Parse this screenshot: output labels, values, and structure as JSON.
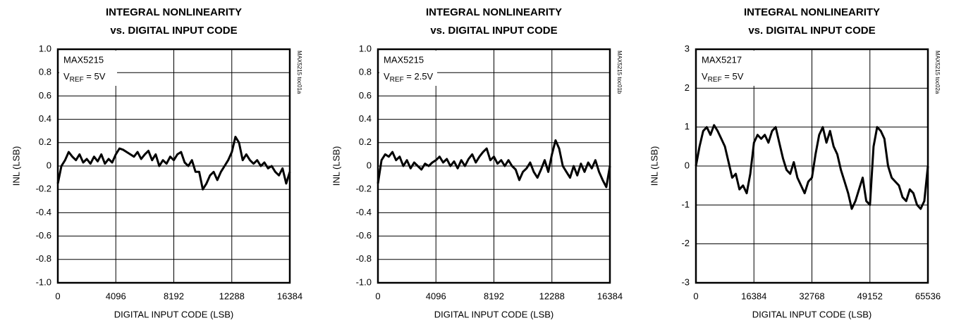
{
  "chart_data": [
    {
      "type": "line",
      "title": [
        "INTEGRAL NONLINEARITY",
        "vs. DIGITAL INPUT CODE"
      ],
      "annotation": {
        "device": "MAX5215",
        "symbol": "V",
        "subscript": "REF",
        "value": " = 5V"
      },
      "side_text": "MAX5215 toc01a",
      "xlabel": "DIGITAL INPUT CODE (LSB)",
      "ylabel": "INL (LSB)",
      "xlim": [
        0,
        16384
      ],
      "xticks": [
        0,
        4096,
        8192,
        12288,
        16384
      ],
      "ylim": [
        -1,
        1
      ],
      "yticks": [
        {
          "value": -1,
          "label": "-1.0"
        },
        -0.8,
        -0.6,
        -0.4,
        -0.2,
        0,
        0.2,
        0.4,
        0.6,
        0.8,
        {
          "value": 1,
          "label": "1.0"
        }
      ],
      "grid": true,
      "color": "#000000",
      "x": [
        0,
        256,
        512,
        768,
        1024,
        1280,
        1536,
        1792,
        2048,
        2304,
        2560,
        2816,
        3072,
        3328,
        3584,
        3840,
        4096,
        4352,
        4608,
        4864,
        5120,
        5376,
        5632,
        5888,
        6144,
        6400,
        6656,
        6912,
        7168,
        7424,
        7680,
        7936,
        8192,
        8448,
        8704,
        8960,
        9216,
        9472,
        9728,
        9984,
        10240,
        10496,
        10752,
        11008,
        11264,
        11520,
        11776,
        12032,
        12288,
        12544,
        12800,
        13056,
        13312,
        13568,
        13824,
        14080,
        14336,
        14592,
        14848,
        15104,
        15360,
        15616,
        15872,
        16128,
        16384
      ],
      "values": [
        -0.15,
        0.0,
        0.05,
        0.12,
        0.08,
        0.05,
        0.1,
        0.03,
        0.06,
        0.02,
        0.08,
        0.04,
        0.1,
        0.02,
        0.06,
        0.03,
        0.1,
        0.15,
        0.14,
        0.12,
        0.1,
        0.08,
        0.12,
        0.06,
        0.1,
        0.13,
        0.05,
        0.1,
        0.0,
        0.05,
        0.02,
        0.08,
        0.05,
        0.1,
        0.12,
        0.03,
        0.0,
        0.05,
        -0.05,
        -0.05,
        -0.2,
        -0.15,
        -0.08,
        -0.05,
        -0.12,
        -0.05,
        0.0,
        0.05,
        0.12,
        0.25,
        0.2,
        0.05,
        0.1,
        0.05,
        0.02,
        0.05,
        0.0,
        0.03,
        -0.02,
        0.0,
        -0.05,
        -0.08,
        -0.02,
        -0.15,
        -0.05
      ]
    },
    {
      "type": "line",
      "title": [
        "INTEGRAL NONLINEARITY",
        "vs. DIGITAL INPUT CODE"
      ],
      "annotation": {
        "device": "MAX5215",
        "symbol": "V",
        "subscript": "REF",
        "value": " = 2.5V"
      },
      "side_text": "MAX5215 toc01b",
      "xlabel": "DIGITAL INPUT CODE (LSB)",
      "ylabel": "INL (LSB)",
      "xlim": [
        0,
        16384
      ],
      "xticks": [
        0,
        4096,
        8192,
        12288,
        16384
      ],
      "ylim": [
        -1,
        1
      ],
      "yticks": [
        {
          "value": -1,
          "label": "-1.0"
        },
        -0.8,
        -0.6,
        -0.4,
        -0.2,
        0,
        0.2,
        0.4,
        0.6,
        0.8,
        {
          "value": 1,
          "label": "1.0"
        }
      ],
      "grid": true,
      "color": "#000000",
      "x": [
        0,
        256,
        512,
        768,
        1024,
        1280,
        1536,
        1792,
        2048,
        2304,
        2560,
        2816,
        3072,
        3328,
        3584,
        3840,
        4096,
        4352,
        4608,
        4864,
        5120,
        5376,
        5632,
        5888,
        6144,
        6400,
        6656,
        6912,
        7168,
        7424,
        7680,
        7936,
        8192,
        8448,
        8704,
        8960,
        9216,
        9472,
        9728,
        9984,
        10240,
        10496,
        10752,
        11008,
        11264,
        11520,
        11776,
        12032,
        12288,
        12544,
        12800,
        13056,
        13312,
        13568,
        13824,
        14080,
        14336,
        14592,
        14848,
        15104,
        15360,
        15616,
        15872,
        16128,
        16384
      ],
      "values": [
        -0.15,
        0.05,
        0.1,
        0.08,
        0.12,
        0.05,
        0.08,
        0.0,
        0.05,
        -0.02,
        0.03,
        0.0,
        -0.03,
        0.02,
        0.0,
        0.03,
        0.05,
        0.08,
        0.03,
        0.06,
        0.0,
        0.04,
        -0.02,
        0.05,
        0.0,
        0.06,
        0.1,
        0.03,
        0.08,
        0.12,
        0.15,
        0.05,
        0.08,
        0.02,
        0.05,
        0.0,
        0.05,
        0.0,
        -0.03,
        -0.12,
        -0.05,
        -0.02,
        0.03,
        -0.05,
        -0.1,
        -0.03,
        0.05,
        -0.05,
        0.1,
        0.22,
        0.15,
        0.0,
        -0.05,
        -0.1,
        0.0,
        -0.08,
        0.02,
        -0.05,
        0.03,
        -0.02,
        0.05,
        -0.05,
        -0.12,
        -0.18,
        0.0
      ]
    },
    {
      "type": "line",
      "title": [
        "INTEGRAL NONLINEARITY",
        "vs. DIGITAL INPUT CODE"
      ],
      "annotation": {
        "device": "MAX5217",
        "symbol": "V",
        "subscript": "REF",
        "value": " = 5V"
      },
      "side_text": "MAX5215 toc02a",
      "xlabel": "DIGITAL INPUT CODE (LSB)",
      "ylabel": "INL (LSB)",
      "xlim": [
        0,
        65536
      ],
      "xticks": [
        0,
        16384,
        32768,
        49152,
        65536
      ],
      "ylim": [
        -3,
        3
      ],
      "yticks": [
        -3,
        -2,
        -1,
        0,
        1,
        2,
        3
      ],
      "grid": true,
      "color": "#000000",
      "x": [
        0,
        1024,
        2048,
        3072,
        4096,
        5120,
        6144,
        7168,
        8192,
        9216,
        10240,
        11264,
        12288,
        13312,
        14336,
        15360,
        16384,
        17408,
        18432,
        19456,
        20480,
        21504,
        22528,
        23552,
        24576,
        25600,
        26624,
        27648,
        28672,
        29696,
        30720,
        31744,
        32768,
        33792,
        34816,
        35840,
        36864,
        37888,
        38912,
        39936,
        40960,
        41984,
        43008,
        44032,
        45056,
        46080,
        47104,
        48128,
        49152,
        50176,
        51200,
        52224,
        53248,
        54272,
        55296,
        56320,
        57344,
        58368,
        59392,
        60416,
        61440,
        62464,
        63488,
        64512,
        65536
      ],
      "values": [
        0,
        0.5,
        0.9,
        1.0,
        0.8,
        1.05,
        0.9,
        0.7,
        0.5,
        0.1,
        -0.3,
        -0.2,
        -0.6,
        -0.5,
        -0.7,
        -0.2,
        0.6,
        0.8,
        0.7,
        0.8,
        0.6,
        0.9,
        1.0,
        0.6,
        0.2,
        -0.1,
        -0.2,
        0.1,
        -0.3,
        -0.5,
        -0.7,
        -0.4,
        -0.3,
        0.3,
        0.8,
        1.0,
        0.6,
        0.9,
        0.5,
        0.3,
        -0.1,
        -0.4,
        -0.7,
        -1.1,
        -0.9,
        -0.6,
        -0.3,
        -0.9,
        -1.0,
        0.5,
        1.0,
        0.9,
        0.7,
        0.0,
        -0.3,
        -0.4,
        -0.5,
        -0.8,
        -0.9,
        -0.6,
        -0.7,
        -1.0,
        -1.1,
        -0.9,
        0.0
      ]
    }
  ]
}
